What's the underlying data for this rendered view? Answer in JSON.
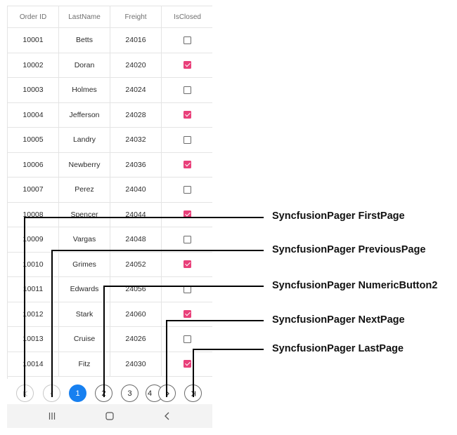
{
  "grid": {
    "columns": [
      "Order ID",
      "LastName",
      "Freight",
      "IsClosed"
    ],
    "rows": [
      {
        "order_id": "10001",
        "last_name": "Betts",
        "freight": "24016",
        "is_closed": false
      },
      {
        "order_id": "10002",
        "last_name": "Doran",
        "freight": "24020",
        "is_closed": true
      },
      {
        "order_id": "10003",
        "last_name": "Holmes",
        "freight": "24024",
        "is_closed": false
      },
      {
        "order_id": "10004",
        "last_name": "Jefferson",
        "freight": "24028",
        "is_closed": true
      },
      {
        "order_id": "10005",
        "last_name": "Landry",
        "freight": "24032",
        "is_closed": false
      },
      {
        "order_id": "10006",
        "last_name": "Newberry",
        "freight": "24036",
        "is_closed": true
      },
      {
        "order_id": "10007",
        "last_name": "Perez",
        "freight": "24040",
        "is_closed": false
      },
      {
        "order_id": "10008",
        "last_name": "Spencer",
        "freight": "24044",
        "is_closed": true
      },
      {
        "order_id": "10009",
        "last_name": "Vargas",
        "freight": "24048",
        "is_closed": false
      },
      {
        "order_id": "10010",
        "last_name": "Grimes",
        "freight": "24052",
        "is_closed": true
      },
      {
        "order_id": "10011",
        "last_name": "Edwards",
        "freight": "24056",
        "is_closed": false
      },
      {
        "order_id": "10012",
        "last_name": "Stark",
        "freight": "24060",
        "is_closed": true
      },
      {
        "order_id": "10013",
        "last_name": "Cruise",
        "freight": "24026",
        "is_closed": false
      },
      {
        "order_id": "10014",
        "last_name": "Fitz",
        "freight": "24030",
        "is_closed": true
      }
    ]
  },
  "pager": {
    "first_icon": "first-page-icon",
    "previous_icon": "previous-page-icon",
    "next_icon": "next-page-icon",
    "last_icon": "last-page-icon",
    "numeric_buttons": [
      "1",
      "2",
      "3",
      "4"
    ],
    "current_page": "1"
  },
  "navbar": {
    "icons": [
      "recent-apps-icon",
      "home-icon",
      "back-icon"
    ]
  },
  "callouts": {
    "first_page": "SyncfusionPager FirstPage",
    "previous_page": "SyncfusionPager PreviousPage",
    "numeric_button2": "SyncfusionPager NumericButton2",
    "next_page": "SyncfusionPager NextPage",
    "last_page": "SyncfusionPager LastPage"
  },
  "colors": {
    "checkbox_checked": "#e9407a",
    "pager_active": "#1780f0",
    "gridline": "#e4e4e4"
  }
}
